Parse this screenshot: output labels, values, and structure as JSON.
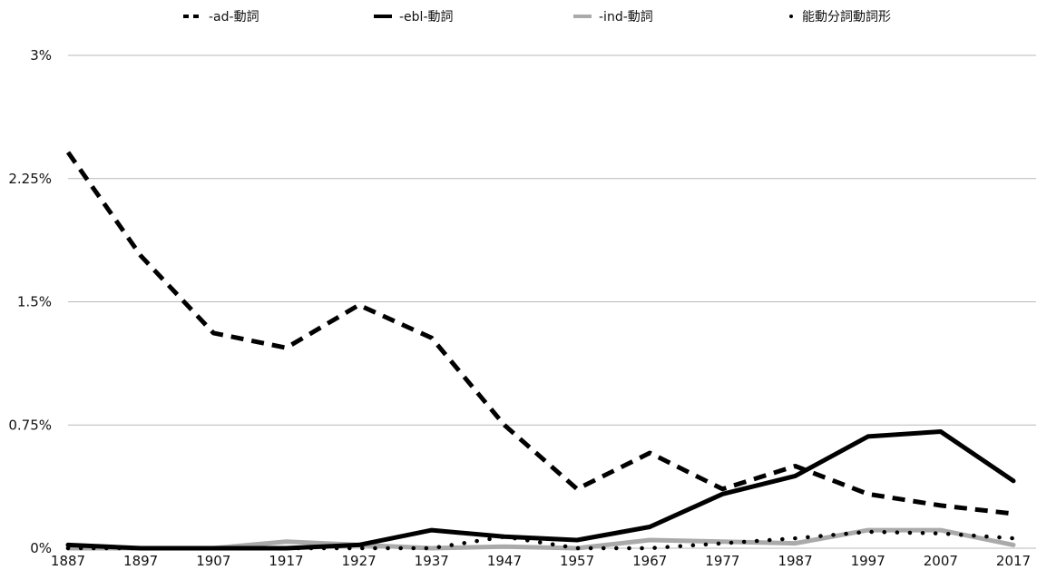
{
  "chart_data": {
    "type": "line",
    "title": "",
    "xlabel": "",
    "ylabel": "",
    "x": [
      1887,
      1897,
      1907,
      1917,
      1927,
      1937,
      1947,
      1957,
      1967,
      1977,
      1987,
      1997,
      2007,
      2017
    ],
    "x_tick_labels": [
      "1887",
      "1897",
      "1907",
      "1917",
      "1927",
      "1937",
      "1947",
      "1957",
      "1967",
      "1977",
      "1987",
      "1997",
      "2007",
      "2017"
    ],
    "y_ticks": [
      0,
      0.75,
      1.5,
      2.25,
      3
    ],
    "y_tick_labels": [
      "0%",
      "0.75%",
      "1.5%",
      "2.25%",
      "3%"
    ],
    "ylim": [
      0,
      3
    ],
    "y_unit": "%",
    "grid": true,
    "legend_position": "top",
    "series": [
      {
        "name": "-ad-動詞",
        "style": "dashed",
        "color": "#000000",
        "values": [
          2.41,
          1.78,
          1.31,
          1.22,
          1.48,
          1.28,
          0.75,
          0.36,
          0.58,
          0.36,
          0.5,
          0.33,
          0.26,
          0.21
        ]
      },
      {
        "name": "-ebl-動詞",
        "style": "solid",
        "color": "#000000",
        "values": [
          0.02,
          0.0,
          0.0,
          0.0,
          0.02,
          0.11,
          0.07,
          0.05,
          0.13,
          0.33,
          0.44,
          0.68,
          0.71,
          0.41
        ]
      },
      {
        "name": "-ind-動詞",
        "style": "solid",
        "color": "#aaaaaa",
        "values": [
          0.0,
          0.0,
          0.0,
          0.04,
          0.02,
          0.0,
          0.01,
          0.0,
          0.05,
          0.04,
          0.03,
          0.11,
          0.11,
          0.02
        ]
      },
      {
        "name": "能動分詞動詞形",
        "style": "dotted",
        "color": "#000000",
        "values": [
          0.0,
          0.0,
          0.0,
          0.0,
          0.0,
          0.0,
          0.07,
          0.0,
          0.0,
          0.03,
          0.06,
          0.1,
          0.09,
          0.06
        ]
      }
    ]
  }
}
